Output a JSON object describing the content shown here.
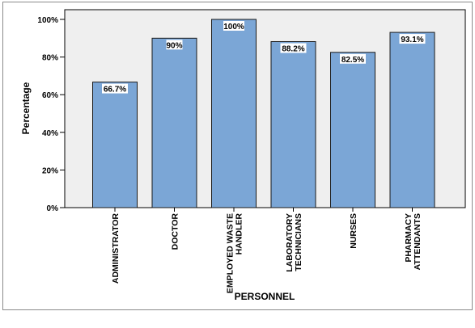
{
  "chart_data": {
    "type": "bar",
    "title": "",
    "xlabel": "PERSONNEL",
    "ylabel": "Percentage",
    "categories": [
      [
        "ADMINISTRATOR"
      ],
      [
        "DOCTOR"
      ],
      [
        "EMPLOYED WASTE",
        "HANDLER"
      ],
      [
        "LABORATORY",
        "TECHNICIANS"
      ],
      [
        "NURSES"
      ],
      [
        "PHARMACY",
        "ATTENDANTS"
      ]
    ],
    "values": [
      66.7,
      90,
      100,
      88.2,
      82.5,
      93.1
    ],
    "data_labels": [
      "66.7%",
      "90%",
      "100%",
      "88.2%",
      "82.5%",
      "93.1%"
    ],
    "ylim": [
      0,
      100
    ],
    "yticks": [
      0,
      20,
      40,
      60,
      80,
      100
    ],
    "ytick_labels": [
      "0%",
      "20%",
      "40%",
      "60%",
      "80%",
      "100%"
    ],
    "grid": false,
    "colors": {
      "bar_fill": "#7ba6d6",
      "bar_stroke": "#1a1a1a",
      "plot_background": "#efefef"
    }
  }
}
